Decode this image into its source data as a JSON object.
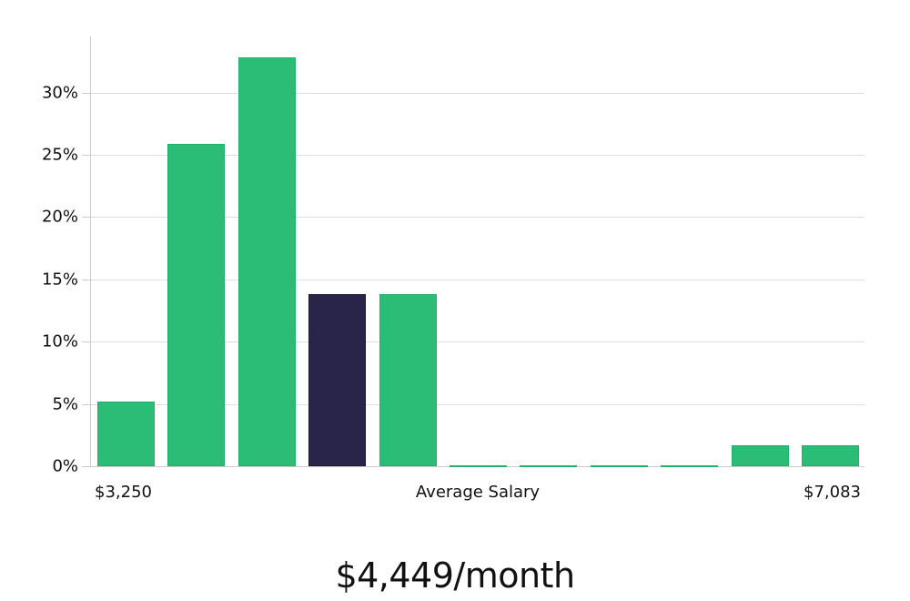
{
  "chart_data": {
    "type": "bar",
    "title": "",
    "xlabel": "Average Salary",
    "ylabel": "",
    "x_min_label": "$3,250",
    "x_max_label": "$7,083",
    "categories": [
      "bin1",
      "bin2",
      "bin3",
      "bin4",
      "bin5",
      "bin6",
      "bin7",
      "bin8",
      "bin9",
      "bin10",
      "bin11"
    ],
    "values": [
      5.2,
      25.9,
      32.8,
      13.8,
      13.8,
      0,
      0,
      0,
      0,
      1.7,
      1.7
    ],
    "highlight_index": 3,
    "yticks": [
      "0%",
      "5%",
      "10%",
      "15%",
      "20%",
      "25%",
      "30%"
    ],
    "ylim": [
      0,
      34.5
    ],
    "grid": true,
    "colors": {
      "bar": "#2bbd75",
      "highlight": "#29254a",
      "grid": "#dddddd"
    }
  },
  "footer": {
    "headline": "$4,449/month"
  }
}
